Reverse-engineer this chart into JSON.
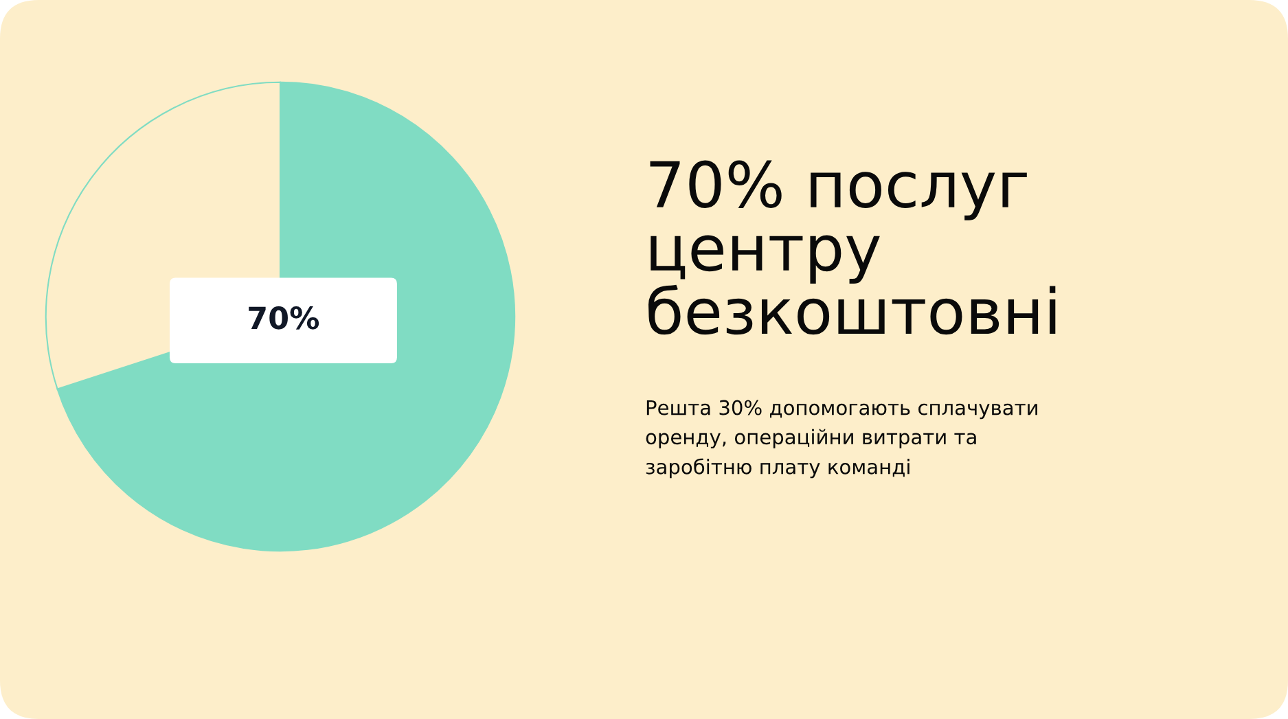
{
  "chart_data": {
    "type": "pie",
    "title": "70% послуг\nцентру\nбезкоштовні",
    "subtitle": "Решта 30% допомогають сплачувати\nоренду, операційни витрати та\nзаробітню плату команді",
    "categories": [
      null,
      null
    ],
    "values": [
      70,
      30
    ],
    "colors": [
      "#80dcc3",
      "#fdeeca"
    ],
    "value_labels": [
      "70%",
      null
    ],
    "legend": false
  }
}
